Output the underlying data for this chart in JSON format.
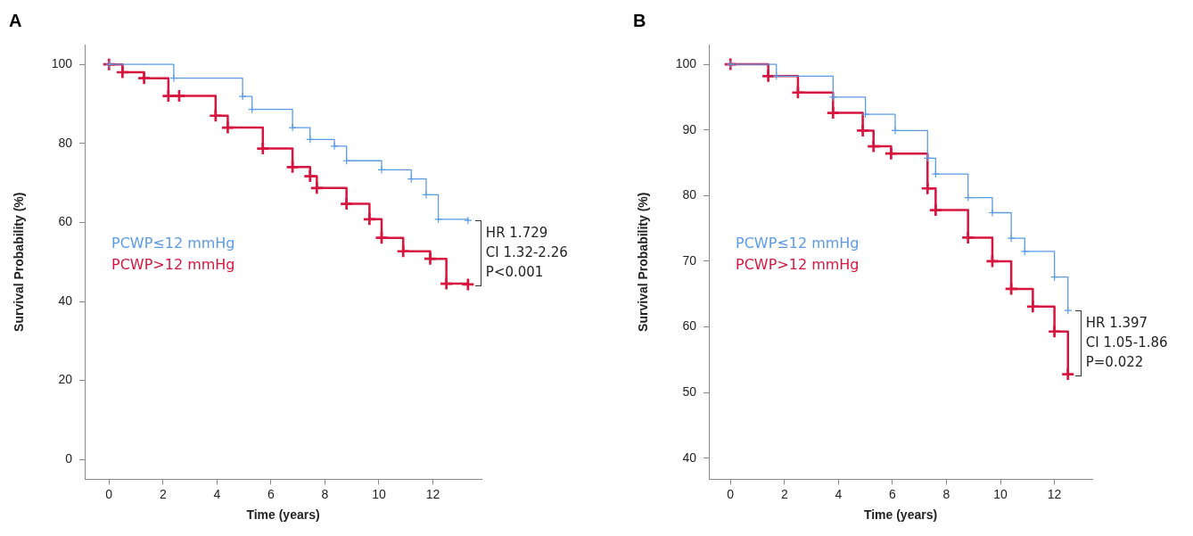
{
  "chart_data": [
    {
      "type": "step",
      "title": "A",
      "xlabel": "Time (years)",
      "ylabel": "Survival Probability (%)",
      "xlim": [
        -0.9,
        13.8
      ],
      "xticks": [
        0,
        2,
        4,
        6,
        8,
        10,
        12
      ],
      "ylim": [
        -5,
        105
      ],
      "yticks": [
        0,
        20,
        40,
        60,
        80,
        100
      ],
      "grid": false,
      "legend": "left",
      "marker": "cross",
      "line_style": "solid",
      "annotations": [
        "HR 1.729",
        "CI 1.32-2.26",
        "P<0.001"
      ],
      "series": [
        {
          "name": "PCWP≤12 mmHg",
          "color": "#5b9be6",
          "x": [
            0,
            2.4,
            4.95,
            5.3,
            6.8,
            7.45,
            8.35,
            8.8,
            10.1,
            11.2,
            11.75,
            12.2,
            13.3
          ],
          "values": [
            100,
            96.5,
            91.9,
            88.6,
            84,
            81,
            79.3,
            75.6,
            73.3,
            71,
            67,
            60.8,
            60.5
          ]
        },
        {
          "name": "PCWP>12 mmHg",
          "color": "#d6163e",
          "x": [
            0,
            0.5,
            1.3,
            2.2,
            2.6,
            3.95,
            4.4,
            5.7,
            6.8,
            7.45,
            7.7,
            8.8,
            9.65,
            10.1,
            10.9,
            11.9,
            12.5,
            13.3
          ],
          "values": [
            100,
            98,
            96.5,
            92,
            92,
            87,
            84,
            78.7,
            74,
            71.7,
            68.7,
            64.7,
            60.8,
            56.1,
            52.7,
            50.8,
            44.5,
            44.3
          ]
        }
      ]
    },
    {
      "type": "step",
      "title": "B",
      "xlabel": "Time (years)",
      "ylabel": "Survival Probability (%)",
      "xlim": [
        -0.8,
        13.4
      ],
      "xticks": [
        0,
        2,
        4,
        6,
        8,
        10,
        12
      ],
      "ylim": [
        36.8,
        103
      ],
      "yticks": [
        40,
        50,
        60,
        70,
        80,
        90,
        100
      ],
      "grid": false,
      "legend": "left",
      "marker": "cross",
      "line_style": "solid",
      "annotations": [
        "HR 1.397",
        "CI 1.05-1.86",
        "P=0.022"
      ],
      "series": [
        {
          "name": "PCWP≤12 mmHg",
          "color": "#5b9be6",
          "x": [
            0,
            1.7,
            3.8,
            5.0,
            6.1,
            7.3,
            7.6,
            8.8,
            9.7,
            10.4,
            10.9,
            12.0,
            12.5
          ],
          "values": [
            100,
            98.2,
            95,
            92.4,
            89.9,
            85.7,
            83.3,
            79.7,
            77.4,
            73.5,
            71.5,
            67.6,
            62.5
          ]
        },
        {
          "name": "PCWP>12 mmHg",
          "color": "#d6163e",
          "x": [
            0,
            1.4,
            2.5,
            3.8,
            4.9,
            5.3,
            5.95,
            7.3,
            7.6,
            8.8,
            9.7,
            10.4,
            11.2,
            12.0,
            12.5
          ],
          "values": [
            100,
            98.2,
            95.7,
            92.6,
            89.9,
            87.5,
            86.4,
            81.1,
            77.8,
            73.6,
            70,
            65.8,
            63.1,
            59.3,
            52.8
          ]
        }
      ]
    }
  ]
}
